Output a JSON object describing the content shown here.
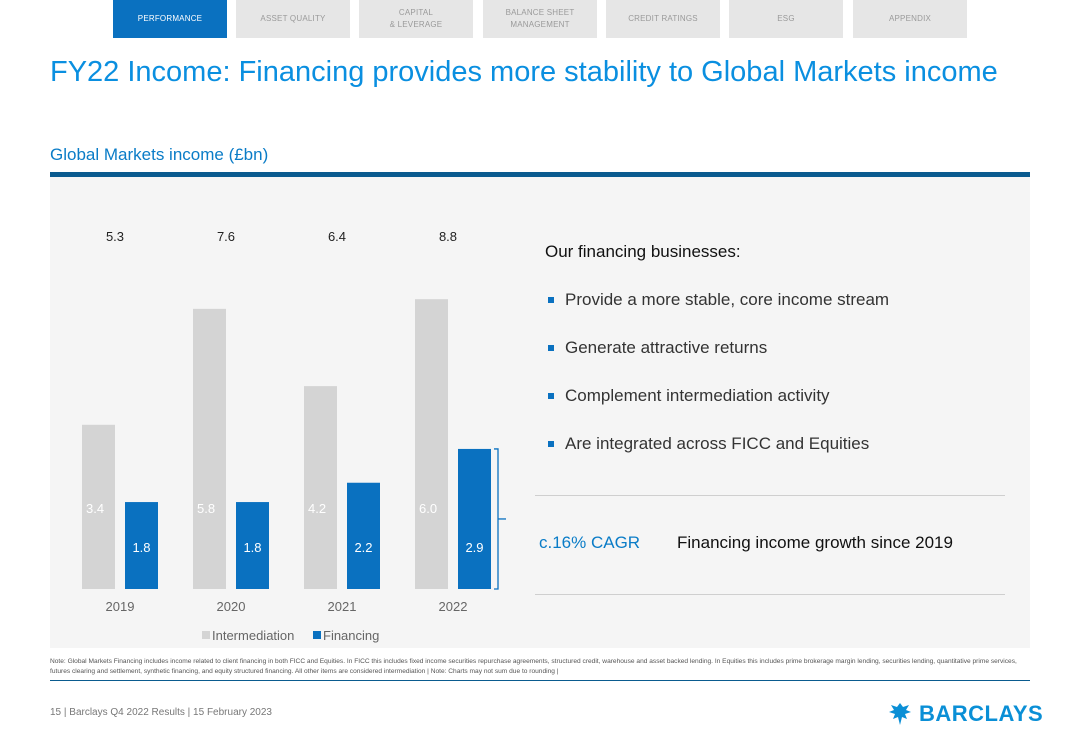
{
  "nav": {
    "tabs": [
      {
        "label": "PERFORMANCE",
        "active": true
      },
      {
        "label": "ASSET QUALITY",
        "active": false
      },
      {
        "label": "CAPITAL\n& LEVERAGE",
        "active": false
      },
      {
        "label": "BALANCE SHEET\nMANAGEMENT",
        "active": false
      },
      {
        "label": "CREDIT RATINGS",
        "active": false
      },
      {
        "label": "ESG",
        "active": false
      },
      {
        "label": "APPENDIX",
        "active": false
      }
    ]
  },
  "header": {
    "title": "FY22 Income: Financing provides more stability to Global Markets income",
    "subtitle": "Global Markets income (£bn)"
  },
  "chart_data": {
    "type": "bar",
    "stacked": false,
    "categories": [
      "2019",
      "2020",
      "2021",
      "2022"
    ],
    "totals": [
      "5.3",
      "7.6",
      "6.4",
      "8.8"
    ],
    "series": [
      {
        "name": "Intermediation",
        "values": [
          3.4,
          5.8,
          4.2,
          6.0
        ],
        "color": "#d4d4d4"
      },
      {
        "name": "Financing",
        "values": [
          1.8,
          1.8,
          2.2,
          2.9
        ],
        "color": "#0a71c0"
      }
    ],
    "ylim": [
      0,
      6.5
    ],
    "grid": false,
    "legend": "bottom"
  },
  "financing": {
    "heading": "Our financing businesses:",
    "bullets": [
      "Provide a more stable, core income stream",
      "Generate attractive returns",
      "Complement intermediation activity",
      "Are integrated across FICC and Equities"
    ],
    "cagr": "c.16% CAGR",
    "cagr_desc": "Financing income growth since 2019"
  },
  "note": "Note: Global Markets Financing includes income related to client financing in both FICC and Equities. In FICC this includes fixed income securities repurchase agreements, structured credit, warehouse and asset backed lending. In Equities this includes prime brokerage margin lending, securities lending, quantitative prime services, futures clearing and settlement, synthetic financing, and equity structured financing. All other items are considered intermediation | Note: Charts may not sum due to rounding |",
  "footer": {
    "text": "15 | Barclays Q4 2022 Results | 15 February 2023",
    "logo_text": "BARCLAYS"
  },
  "colors": {
    "accent": "#0a8fe0",
    "nav_active": "#0a71c0",
    "rule": "#0a5b8f"
  }
}
